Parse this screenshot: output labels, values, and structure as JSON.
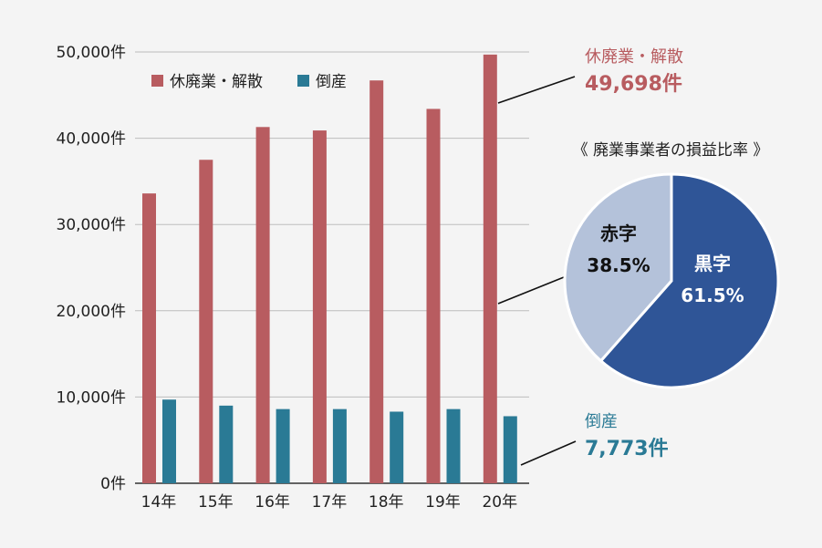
{
  "chart_data": [
    {
      "type": "bar",
      "categories": [
        "14年",
        "15年",
        "16年",
        "17年",
        "18年",
        "19年",
        "20年"
      ],
      "series": [
        {
          "name": "休廃業・解散",
          "color": "#b85c60",
          "values": [
            33600,
            37500,
            41300,
            40900,
            46700,
            43400,
            49698
          ]
        },
        {
          "name": "倒産",
          "color": "#2a7a95",
          "values": [
            9700,
            9000,
            8600,
            8600,
            8300,
            8600,
            7773
          ]
        }
      ],
      "ylim": [
        0,
        50000
      ],
      "yticks": [
        "0件",
        "10,000件",
        "20,000件",
        "30,000件",
        "40,000件",
        "50,000件"
      ],
      "grid": true,
      "legend": "top-left",
      "annotations": {
        "closure": {
          "name": "休廃業・解散",
          "value": "49,698件",
          "color": "#b85c60"
        },
        "bankruptcy": {
          "name": "倒産",
          "value": "7,773件",
          "color": "#2a7a95"
        }
      }
    },
    {
      "type": "pie",
      "title": "《 廃業事業者の損益比率 》",
      "slices": [
        {
          "name": "黒字",
          "value": 61.5,
          "label": "61.5%",
          "color": "#2f5597",
          "text_color": "#ffffff"
        },
        {
          "name": "赤字",
          "value": 38.5,
          "label": "38.5%",
          "color": "#b4c2da",
          "text_color": "#111111"
        }
      ]
    }
  ]
}
